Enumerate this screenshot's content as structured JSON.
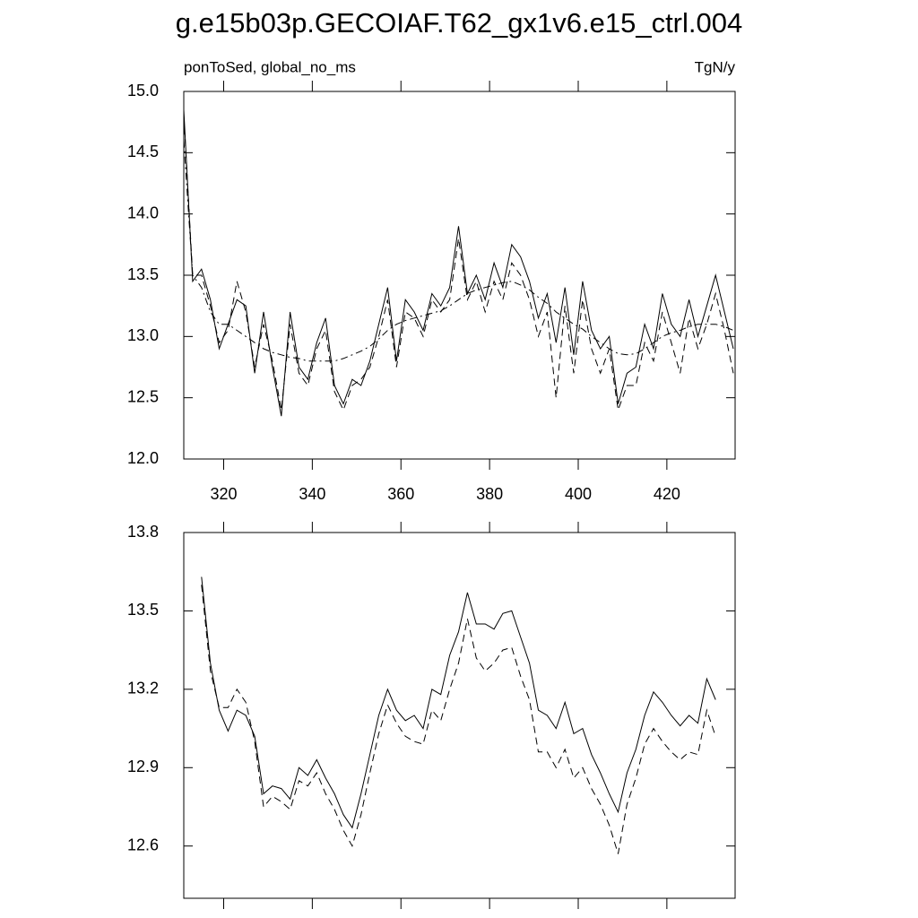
{
  "chart_data": [
    {
      "type": "line",
      "title": "g.e15b03p.GECOIAF.T62_gx1v6.e15_ctrl.004",
      "subtitle": "ponToSed, global_no_ms",
      "units": "TgN/y",
      "x": [
        311,
        313,
        315,
        317,
        319,
        321,
        323,
        325,
        327,
        329,
        331,
        333,
        335,
        337,
        339,
        341,
        343,
        345,
        347,
        349,
        351,
        353,
        355,
        357,
        359,
        361,
        363,
        365,
        367,
        369,
        371,
        373,
        375,
        377,
        379,
        381,
        383,
        385,
        387,
        389,
        391,
        393,
        395,
        397,
        399,
        401,
        403,
        405,
        407,
        409,
        411,
        413,
        415,
        417,
        419,
        421,
        423,
        425,
        427,
        429,
        431,
        433,
        435
      ],
      "series": [
        {
          "color": "#000000",
          "dash": "solid",
          "values": [
            14.85,
            13.45,
            13.55,
            13.3,
            12.9,
            13.1,
            13.3,
            13.25,
            12.7,
            13.2,
            12.75,
            12.35,
            13.2,
            12.75,
            12.65,
            12.95,
            13.15,
            12.6,
            12.45,
            12.65,
            12.6,
            12.8,
            13.1,
            13.4,
            12.8,
            13.3,
            13.2,
            13.05,
            13.35,
            13.25,
            13.4,
            13.9,
            13.35,
            13.5,
            13.3,
            13.6,
            13.4,
            13.75,
            13.65,
            13.45,
            13.15,
            13.35,
            12.95,
            13.4,
            12.85,
            13.45,
            13.05,
            12.9,
            13.0,
            12.45,
            12.7,
            12.75,
            13.1,
            12.9,
            13.35,
            13.1,
            13.0,
            13.3,
            13.0,
            13.25,
            13.5,
            13.2,
            12.9
          ]
        },
        {
          "color": "#000000",
          "dash": "dashed",
          "values": [
            14.8,
            13.5,
            13.5,
            13.25,
            12.95,
            13.05,
            13.45,
            13.2,
            12.75,
            13.1,
            12.8,
            12.4,
            13.1,
            12.7,
            12.6,
            12.9,
            13.05,
            12.55,
            12.4,
            12.6,
            12.65,
            12.75,
            13.0,
            13.3,
            12.75,
            13.2,
            13.15,
            13.0,
            13.3,
            13.2,
            13.3,
            13.8,
            13.3,
            13.45,
            13.2,
            13.45,
            13.3,
            13.6,
            13.5,
            13.3,
            13.0,
            13.2,
            12.5,
            13.25,
            12.7,
            13.3,
            12.9,
            12.7,
            12.9,
            12.4,
            12.6,
            12.6,
            12.95,
            12.8,
            13.2,
            12.95,
            12.7,
            13.15,
            12.9,
            13.1,
            13.35,
            13.05,
            12.7
          ]
        },
        {
          "color": "#000000",
          "dash": "dashdot",
          "values": [
            14.6,
            13.5,
            13.4,
            13.2,
            13.1,
            13.1,
            13.05,
            13.0,
            12.95,
            12.9,
            12.87,
            12.85,
            12.83,
            12.82,
            12.8,
            12.8,
            12.8,
            12.8,
            12.82,
            12.85,
            12.88,
            12.92,
            12.98,
            13.05,
            13.1,
            13.13,
            13.15,
            13.17,
            13.19,
            13.21,
            13.25,
            13.3,
            13.35,
            13.38,
            13.4,
            13.42,
            13.44,
            13.45,
            13.42,
            13.38,
            13.32,
            13.27,
            13.2,
            13.15,
            13.1,
            13.06,
            13.0,
            12.95,
            12.9,
            12.86,
            12.85,
            12.86,
            12.9,
            12.95,
            13.0,
            13.03,
            13.05,
            13.08,
            13.1,
            13.1,
            13.1,
            13.08,
            13.05
          ]
        }
      ],
      "xlim": [
        311,
        435.4
      ],
      "ylim": [
        12,
        15
      ],
      "xticks": [
        320,
        340,
        360,
        380,
        400,
        420
      ],
      "yticks": [
        {
          "value": 12,
          "label": "12.0"
        },
        12.5,
        {
          "value": 13,
          "label": "13.0"
        },
        13.5,
        {
          "value": 14,
          "label": "14.0"
        },
        14.5,
        {
          "value": 15,
          "label": "15.0"
        }
      ]
    },
    {
      "type": "line",
      "x": [
        315,
        317,
        319,
        321,
        323,
        325,
        327,
        329,
        331,
        333,
        335,
        337,
        339,
        341,
        343,
        345,
        347,
        349,
        351,
        353,
        355,
        357,
        359,
        361,
        363,
        365,
        367,
        369,
        371,
        373,
        375,
        377,
        379,
        381,
        383,
        385,
        387,
        389,
        391,
        393,
        395,
        397,
        399,
        401,
        403,
        405,
        407,
        409,
        411,
        413,
        415,
        417,
        419,
        421,
        423,
        425,
        427,
        429,
        431
      ],
      "series": [
        {
          "color": "#000000",
          "dash": "solid",
          "values": [
            13.63,
            13.3,
            13.12,
            13.04,
            13.12,
            13.1,
            13.02,
            12.8,
            12.83,
            12.82,
            12.78,
            12.9,
            12.87,
            12.93,
            12.86,
            12.8,
            12.72,
            12.67,
            12.8,
            12.95,
            13.1,
            13.2,
            13.12,
            13.08,
            13.1,
            13.05,
            13.2,
            13.18,
            13.33,
            13.42,
            13.57,
            13.45,
            13.45,
            13.43,
            13.49,
            13.5,
            13.4,
            13.3,
            13.12,
            13.1,
            13.05,
            13.15,
            13.03,
            13.05,
            12.95,
            12.88,
            12.8,
            12.73,
            12.88,
            12.97,
            13.1,
            13.19,
            13.15,
            13.1,
            13.06,
            13.1,
            13.07,
            13.24,
            13.16
          ]
        },
        {
          "color": "#000000",
          "dash": "dashed",
          "values": [
            13.6,
            13.27,
            13.13,
            13.13,
            13.2,
            13.15,
            13.0,
            12.75,
            12.79,
            12.77,
            12.74,
            12.85,
            12.83,
            12.88,
            12.8,
            12.74,
            12.66,
            12.6,
            12.72,
            12.88,
            13.03,
            13.14,
            13.07,
            13.02,
            13.0,
            12.99,
            13.12,
            13.08,
            13.2,
            13.3,
            13.47,
            13.32,
            13.27,
            13.3,
            13.35,
            13.36,
            13.25,
            13.16,
            12.96,
            12.96,
            12.9,
            12.97,
            12.86,
            12.9,
            12.82,
            12.76,
            12.68,
            12.57,
            12.76,
            12.86,
            12.99,
            13.05,
            13.0,
            12.96,
            12.93,
            12.96,
            12.95,
            13.12,
            13.02
          ]
        }
      ],
      "xlim": [
        311,
        435.4
      ],
      "ylim": [
        12.4,
        13.8
      ],
      "xticks": [
        320,
        340,
        360,
        380,
        400,
        420
      ],
      "xticklabels": false,
      "yticks": [
        12.6,
        12.9,
        13.2,
        13.5,
        13.8
      ]
    }
  ]
}
